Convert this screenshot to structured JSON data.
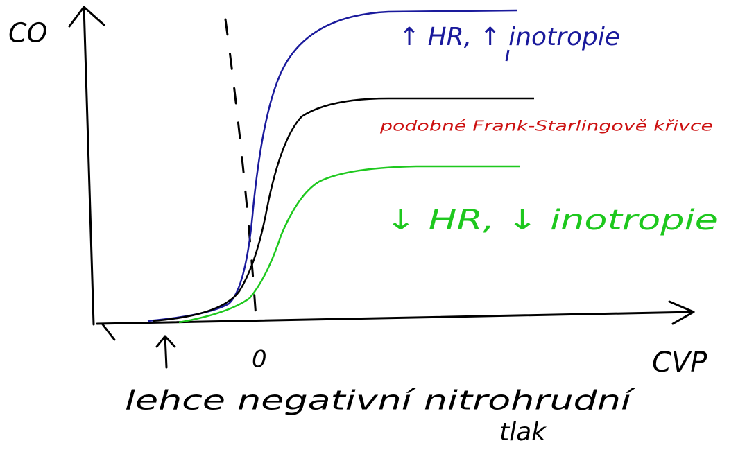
{
  "axes": {
    "y_label": "CO",
    "x_label": "CVP",
    "origin_label": "0"
  },
  "curves": [
    {
      "label": "↑ HR, ↑ inotropie"
    },
    {
      "label": "podobné Frank-Starlingově křivce"
    },
    {
      "label": "↓ HR, ↓ inotropie"
    }
  ],
  "annotation": {
    "lines": [
      "lehce negativní nitrohrudní",
      "tlak"
    ]
  }
}
